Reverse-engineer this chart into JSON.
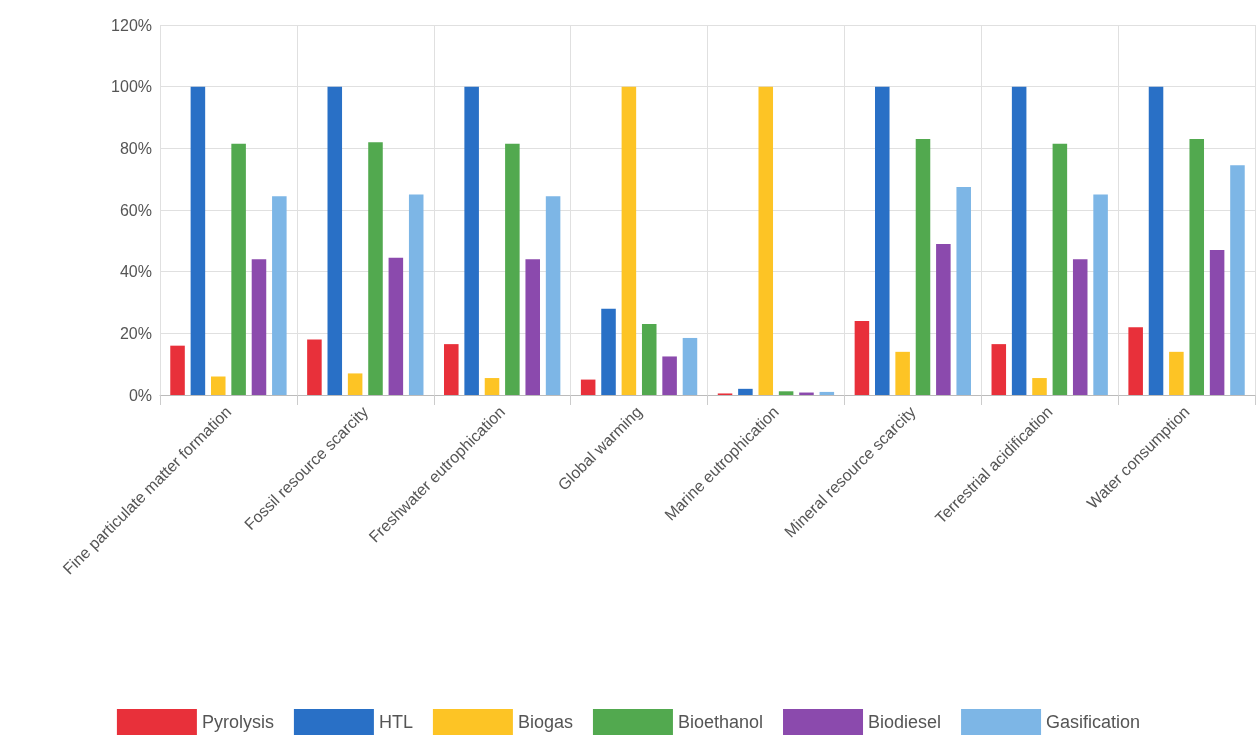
{
  "chart_data": {
    "type": "bar",
    "categories": [
      "Fine particulate matter formation",
      "Fossil resource scarcity",
      "Freshwater eutrophication",
      "Global warming",
      "Marine eutrophication",
      "Mineral resource scarcity",
      "Terrestrial acidification",
      "Water consumption"
    ],
    "series": [
      {
        "name": "Pyrolysis",
        "color": "#e8303a",
        "values": [
          16,
          18,
          16.5,
          5,
          0.5,
          24,
          16.5,
          22
        ]
      },
      {
        "name": "HTL",
        "color": "#2970c6",
        "values": [
          100,
          100,
          100,
          28,
          2,
          100,
          100,
          100
        ]
      },
      {
        "name": "Biogas",
        "color": "#fdc425",
        "values": [
          6,
          7,
          5.5,
          100,
          100,
          14,
          5.5,
          14
        ]
      },
      {
        "name": "Bioethanol",
        "color": "#52a94f",
        "values": [
          81.5,
          82,
          81.5,
          23,
          1.2,
          83,
          81.5,
          83
        ]
      },
      {
        "name": "Biodiesel",
        "color": "#8b4aad",
        "values": [
          44,
          44.5,
          44,
          12.5,
          0.8,
          49,
          44,
          47
        ]
      },
      {
        "name": "Gasification",
        "color": "#7db6e6",
        "values": [
          64.5,
          65,
          64.5,
          18.5,
          1,
          67.5,
          65,
          74.5
        ]
      }
    ],
    "ylim": [
      0,
      120
    ],
    "yticks": [
      {
        "value": 0,
        "label": "0%"
      },
      {
        "value": 20,
        "label": "20%"
      },
      {
        "value": 40,
        "label": "40%"
      },
      {
        "value": 60,
        "label": "60%"
      },
      {
        "value": 80,
        "label": "80%"
      },
      {
        "value": 100,
        "label": "100%"
      },
      {
        "value": 120,
        "label": "120%"
      }
    ],
    "grid": true,
    "legend": "bottom"
  }
}
